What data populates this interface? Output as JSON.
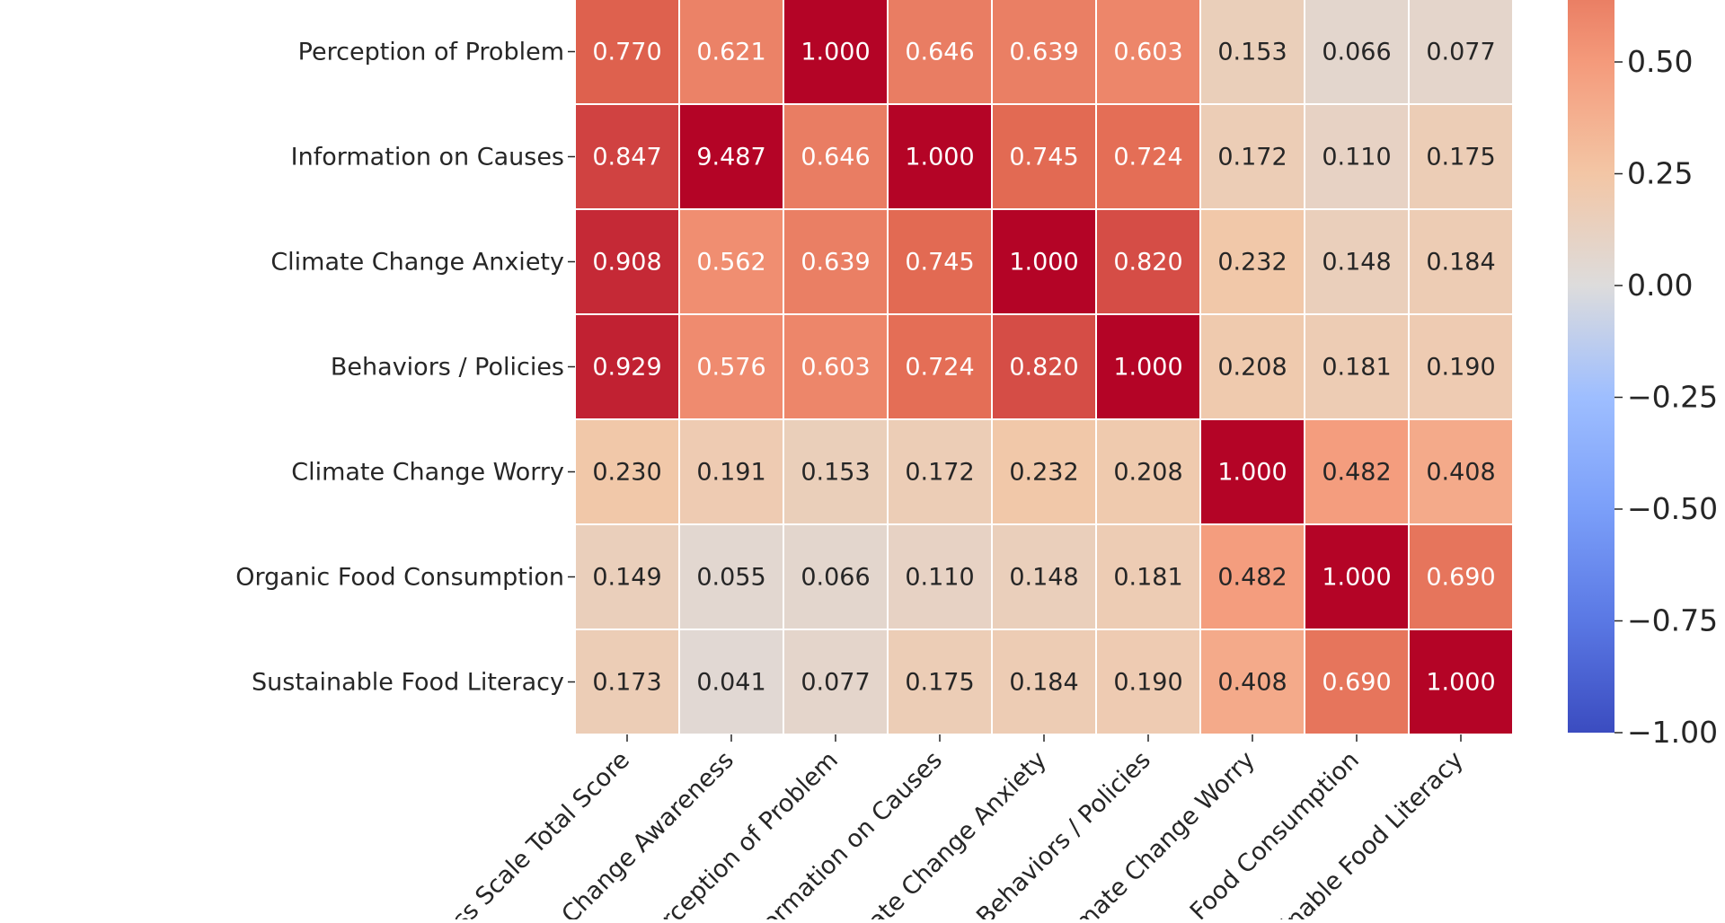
{
  "chart_data": {
    "type": "heatmap",
    "title": "",
    "row_labels": [
      "Perception of Problem",
      "Information on Causes",
      "Climate Change Anxiety",
      "Behaviors / Policies",
      "Climate Change Worry",
      "Organic Food Consumption",
      "Sustainable Food Literacy"
    ],
    "column_labels": [
      "ss Scale Total Score",
      "Change Awareness",
      "rception of Problem",
      "formation on Causes",
      "ate Change Anxiety",
      "Behaviors / Policies",
      "imate Change Worry",
      "Food Consumption",
      "inable Food Literacy"
    ],
    "values": [
      [
        0.77,
        0.621,
        1.0,
        0.646,
        0.639,
        0.603,
        0.153,
        0.066,
        0.077
      ],
      [
        0.847,
        9.487,
        0.646,
        1.0,
        0.745,
        0.724,
        0.172,
        0.11,
        0.175
      ],
      [
        0.908,
        0.562,
        0.639,
        0.745,
        1.0,
        0.82,
        0.232,
        0.148,
        0.184
      ],
      [
        0.929,
        0.576,
        0.603,
        0.724,
        0.82,
        1.0,
        0.208,
        0.181,
        0.19
      ],
      [
        0.23,
        0.191,
        0.153,
        0.172,
        0.232,
        0.208,
        1.0,
        0.482,
        0.408
      ],
      [
        0.149,
        0.055,
        0.066,
        0.11,
        0.148,
        0.181,
        0.482,
        1.0,
        0.69
      ],
      [
        0.173,
        0.041,
        0.077,
        0.175,
        0.184,
        0.19,
        0.408,
        0.69,
        1.0
      ]
    ],
    "cell_labels": [
      [
        "0.770",
        "0.621",
        "1.000",
        "0.646",
        "0.639",
        "0.603",
        "0.153",
        "0.066",
        "0.077"
      ],
      [
        "0.847",
        "9.487",
        "0.646",
        "1.000",
        "0.745",
        "0.724",
        "0.172",
        "0.110",
        "0.175"
      ],
      [
        "0.908",
        "0.562",
        "0.639",
        "0.745",
        "1.000",
        "0.820",
        "0.232",
        "0.148",
        "0.184"
      ],
      [
        "0.929",
        "0.576",
        "0.603",
        "0.724",
        "0.820",
        "1.000",
        "0.208",
        "0.181",
        "0.190"
      ],
      [
        "0.230",
        "0.191",
        "0.153",
        "0.172",
        "0.232",
        "0.208",
        "1.000",
        "0.482",
        "0.408"
      ],
      [
        "0.149",
        "0.055",
        "0.066",
        "0.110",
        "0.148",
        "0.181",
        "0.482",
        "1.000",
        "0.690"
      ],
      [
        "0.173",
        "0.041",
        "0.077",
        "0.175",
        "0.184",
        "0.190",
        "0.408",
        "0.690",
        "1.000"
      ]
    ],
    "colormap": "coolwarm",
    "vmin": -1.0,
    "vmax": 1.0,
    "colorbar": {
      "ticks": [
        0.5,
        0.25,
        0.0,
        -0.25,
        -0.5,
        -0.75,
        -1.0
      ],
      "tick_labels": [
        "0.50",
        "0.25",
        "0.00",
        "−0.25",
        "−0.50",
        "−0.75",
        "−1.00"
      ]
    },
    "colors": {
      "cell_border": "#ffffff",
      "text_dark": "#262626",
      "text_light": "#ffffff"
    }
  }
}
